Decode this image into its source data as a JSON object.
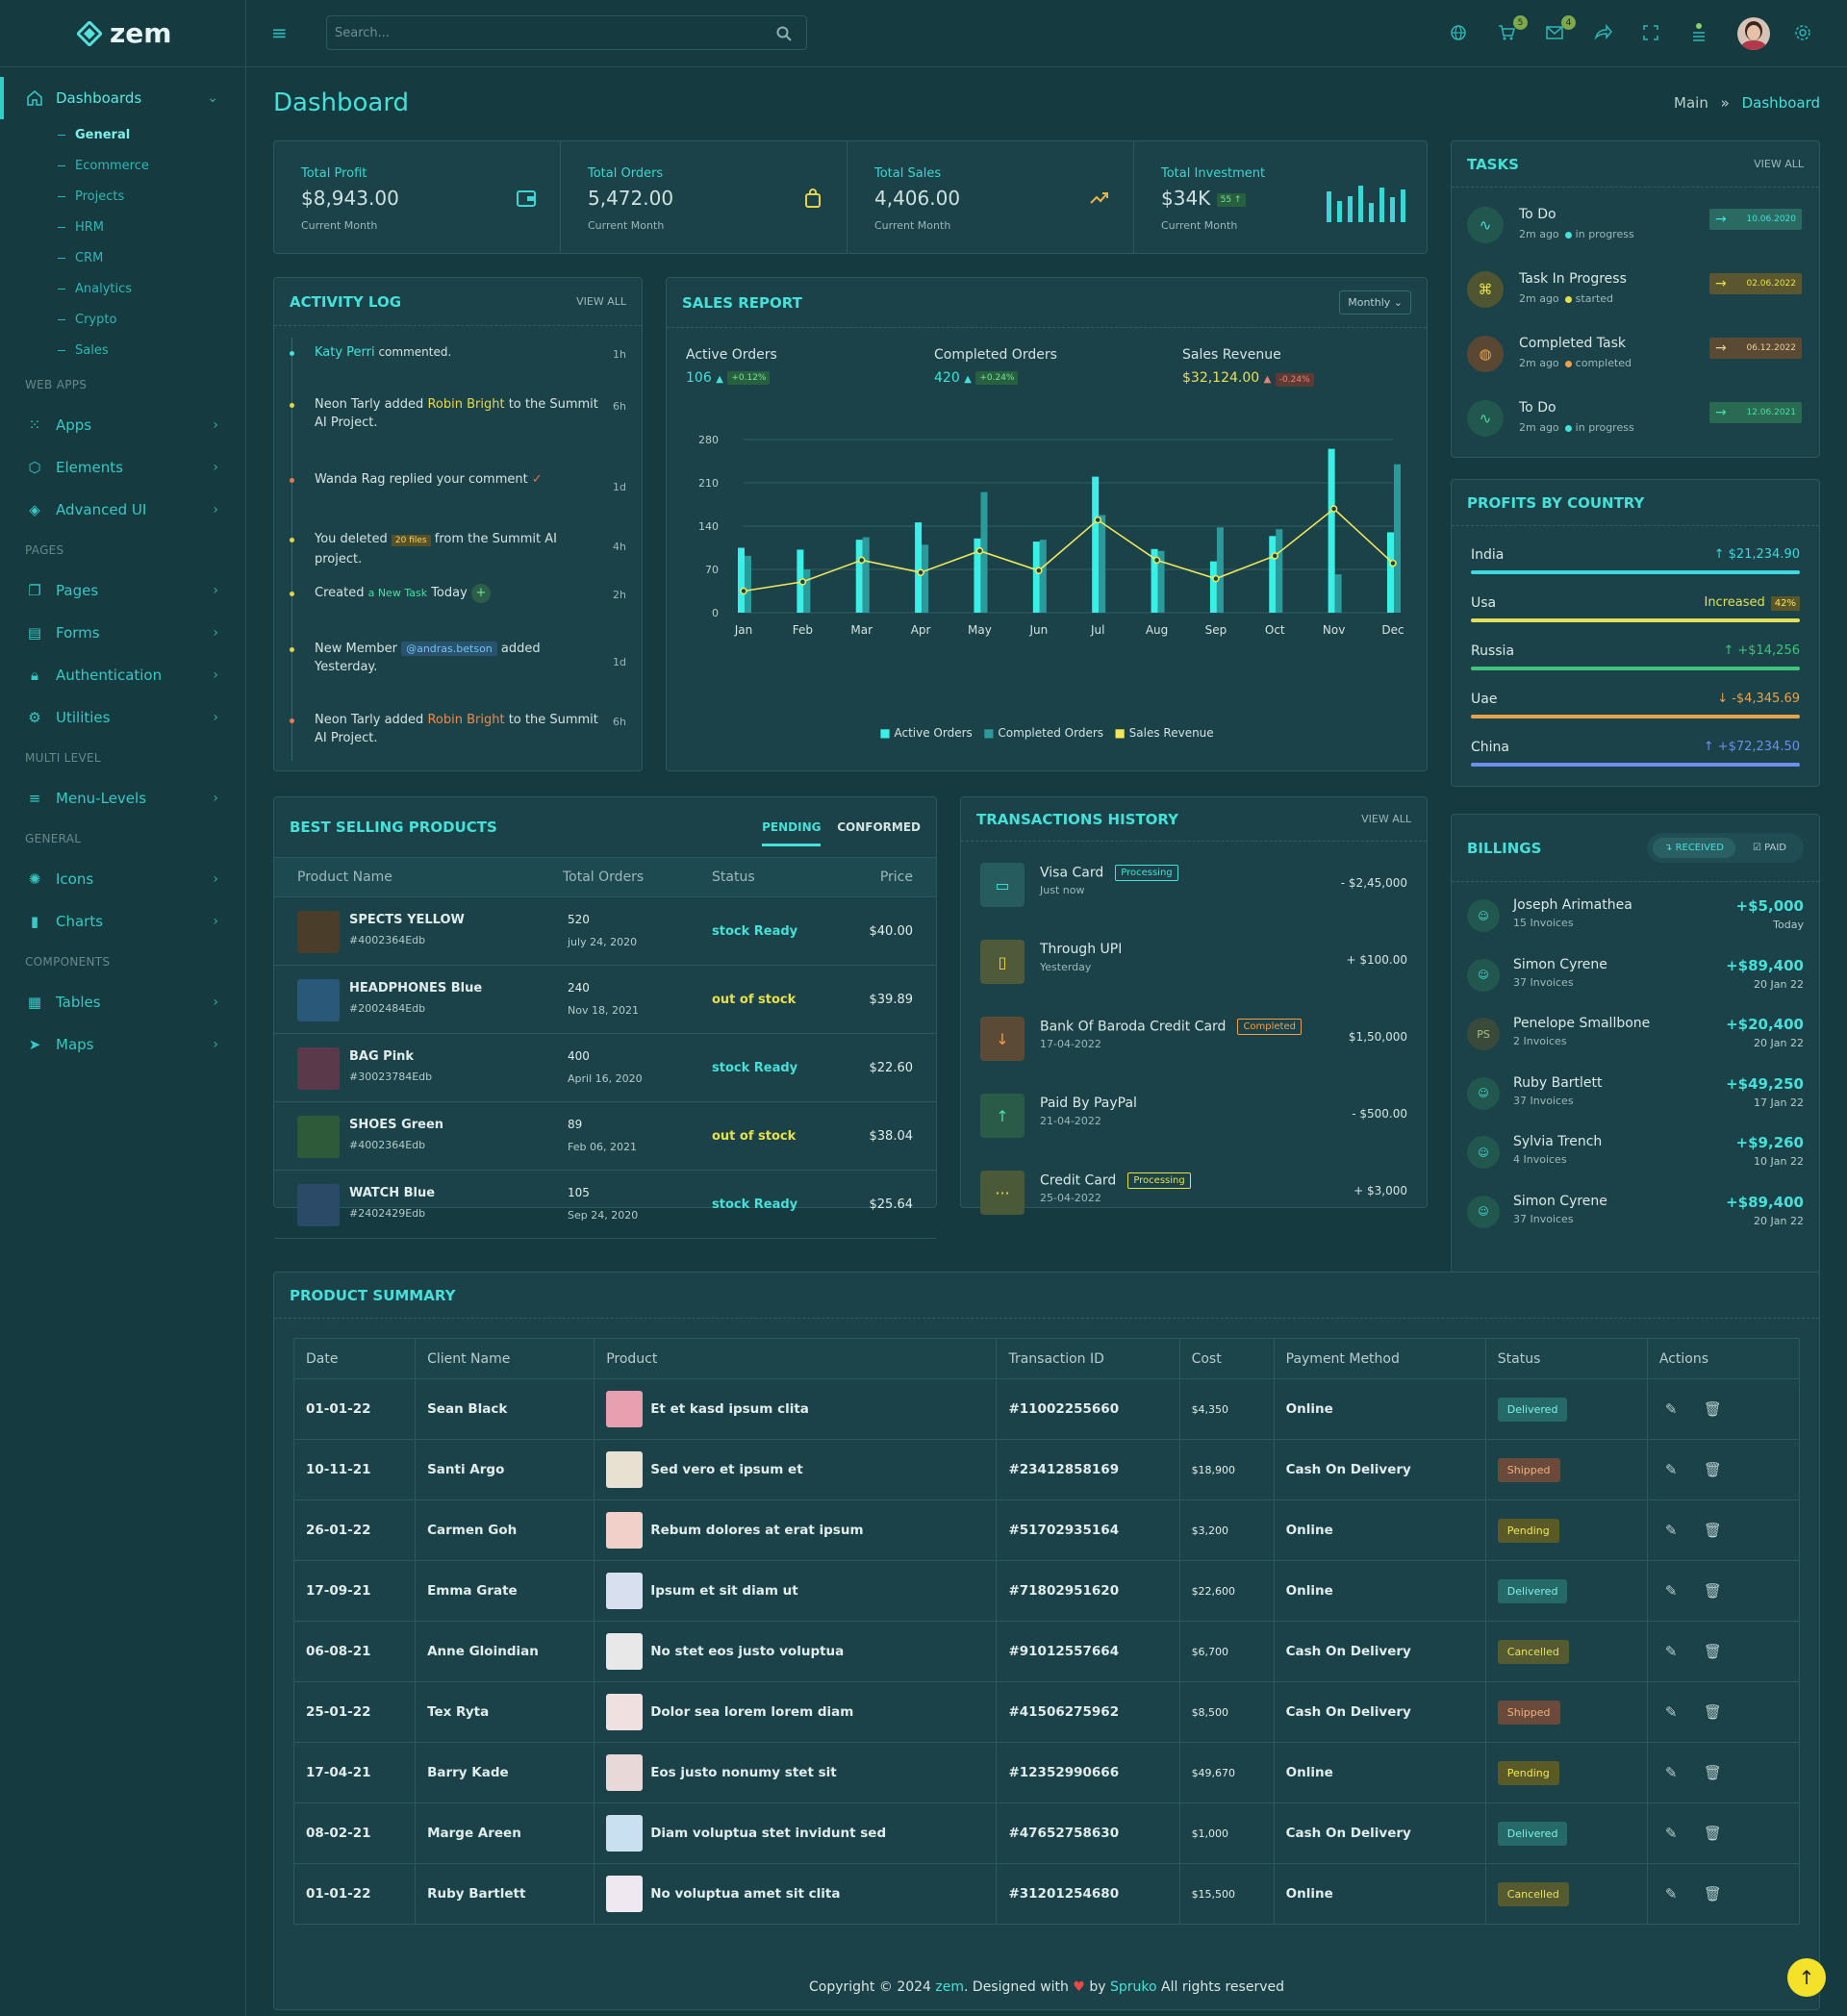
{
  "brand": {
    "name": "zem"
  },
  "search": {
    "placeholder": "Search..."
  },
  "topbar": {
    "cart_count": "5",
    "mail_count": "4"
  },
  "sidebar": {
    "dashboards": "Dashboards",
    "subs": [
      "General",
      "Ecommerce",
      "Projects",
      "HRM",
      "CRM",
      "Analytics",
      "Crypto",
      "Sales"
    ],
    "sections": [
      "WEB APPS",
      "PAGES",
      "MULTI LEVEL",
      "GENERAL",
      "COMPONENTS"
    ],
    "webapps": [
      "Apps",
      "Elements",
      "Advanced UI"
    ],
    "pages": [
      "Pages",
      "Forms",
      "Authentication",
      "Utilities"
    ],
    "multilevel": [
      "Menu-Levels"
    ],
    "general": [
      "Icons",
      "Charts"
    ],
    "components": [
      "Tables",
      "Maps"
    ]
  },
  "page": {
    "title": "Dashboard",
    "crumb_main": "Main",
    "crumb_sep": "»",
    "crumb_current": "Dashboard"
  },
  "stats": [
    {
      "label": "Total Profit",
      "value": "$8,943.00",
      "sub": "Current Month"
    },
    {
      "label": "Total Orders",
      "value": "5,472.00",
      "sub": "Current Month"
    },
    {
      "label": "Total Sales",
      "value": "4,406.00",
      "sub": "Current Month"
    },
    {
      "label": "Total Investment",
      "value": "$34K",
      "badge": "55",
      "sub": "Current Month"
    }
  ],
  "activity": {
    "title": "ACTIVITY LOG",
    "view_all": "VIEW ALL",
    "items": [
      {
        "pre": "",
        "hl": "Katy Perri",
        "post": " commented.",
        "time": "1h"
      },
      {
        "pre": "Neon Tarly added ",
        "hl": "Robin Bright",
        "post": " to the Summit AI Project.",
        "time": "6h"
      },
      {
        "pre": "Wanda Rag replied your comment",
        "hl": "",
        "post": "",
        "time": "1d"
      },
      {
        "pre": "You deleted ",
        "hl": "20 files",
        "post": " from the Summit AI project.",
        "time": "4h"
      },
      {
        "pre": "Created ",
        "hl": "a New Task",
        "post": " Today",
        "time": "2h"
      },
      {
        "pre": "New Member ",
        "hl": "@andras.betson",
        "post": " added Yesterday.",
        "time": "1d"
      },
      {
        "pre": "Neon Tarly added ",
        "hl": "Robin Bright",
        "post": " to the Summit AI Project.",
        "time": "6h"
      }
    ]
  },
  "sales": {
    "title": "SALES REPORT",
    "filter": "Monthly",
    "kpis": [
      {
        "label": "Active Orders",
        "value": "106",
        "change": "+0.12%"
      },
      {
        "label": "Completed Orders",
        "value": "420",
        "change": "+0.24%"
      },
      {
        "label": "Sales Revenue",
        "value": "$32,124.00",
        "change": "-0.24%"
      }
    ]
  },
  "chart_data": {
    "type": "bar",
    "categories": [
      "Jan",
      "Feb",
      "Mar",
      "Apr",
      "May",
      "Jun",
      "Jul",
      "Aug",
      "Sep",
      "Oct",
      "Nov",
      "Dec"
    ],
    "ylim": [
      0,
      280
    ],
    "yticks": [
      0,
      70,
      140,
      210,
      280
    ],
    "series": [
      {
        "name": "Active Orders",
        "type": "bar",
        "values": [
          105,
          102,
          118,
          146,
          120,
          115,
          220,
          103,
          83,
          124,
          265,
          130
        ]
      },
      {
        "name": "Completed Orders",
        "type": "bar",
        "values": [
          92,
          70,
          122,
          110,
          195,
          118,
          158,
          100,
          138,
          135,
          62,
          240
        ]
      },
      {
        "name": "Sales Revenue",
        "type": "line",
        "values": [
          35,
          50,
          85,
          65,
          100,
          68,
          150,
          85,
          55,
          92,
          168,
          80
        ]
      }
    ],
    "grid": true,
    "legend": "bottom"
  },
  "best": {
    "title": "BEST SELLING PRODUCTS",
    "tabs": [
      "PENDING",
      "CONFORMED"
    ],
    "headers": [
      "Product Name",
      "Total Orders",
      "Status",
      "Price"
    ],
    "rows": [
      {
        "name": "SPECTS YELLOW",
        "code": "#4002364Edb",
        "orders": "520",
        "date": "july 24, 2020",
        "status": "stock Ready",
        "price": "$40.00"
      },
      {
        "name": "HEADPHONES Blue",
        "code": "#2002484Edb",
        "orders": "240",
        "date": "Nov 18, 2021",
        "status": "out of stock",
        "price": "$39.89"
      },
      {
        "name": "BAG Pink",
        "code": "#30023784Edb",
        "orders": "400",
        "date": "April 16, 2020",
        "status": "stock Ready",
        "price": "$22.60"
      },
      {
        "name": "SHOES Green",
        "code": "#4002364Edb",
        "orders": "89",
        "date": "Feb 06, 2021",
        "status": "out of stock",
        "price": "$38.04"
      },
      {
        "name": "WATCH Blue",
        "code": "#2402429Edb",
        "orders": "105",
        "date": "Sep 24, 2020",
        "status": "stock Ready",
        "price": "$25.64"
      }
    ]
  },
  "transactions": {
    "title": "TRANSACTIONS HISTORY",
    "view_all": "VIEW ALL",
    "rows": [
      {
        "name": "Visa Card",
        "badge": "Processing",
        "date": "Just now",
        "amount": "- $2,45,000"
      },
      {
        "name": "Through UPI",
        "badge": "",
        "date": "Yesterday",
        "amount": "+ $100.00"
      },
      {
        "name": "Bank Of Baroda Credit Card",
        "badge": "Completed",
        "date": "17-04-2022",
        "amount": "$1,50,000"
      },
      {
        "name": "Paid By PayPal",
        "badge": "",
        "date": "21-04-2022",
        "amount": "- $500.00"
      },
      {
        "name": "Credit Card",
        "badge": "Processing",
        "date": "25-04-2022",
        "amount": "+ $3,000"
      }
    ]
  },
  "tasks": {
    "title": "TASKS",
    "view_all": "VIEW ALL",
    "rows": [
      {
        "name": "To Do",
        "ago": "2m ago",
        "state": "in progress",
        "date": "10.06.2020"
      },
      {
        "name": "Task In Progress",
        "ago": "2m ago",
        "state": "started",
        "date": "02.06.2022"
      },
      {
        "name": "Completed Task",
        "ago": "2m ago",
        "state": "completed",
        "date": "06.12.2022"
      },
      {
        "name": "To Do",
        "ago": "2m ago",
        "state": "in progress",
        "date": "12.06.2021"
      }
    ]
  },
  "profits": {
    "title": "PROFITS BY COUNTRY",
    "rows": [
      {
        "country": "India",
        "value": "$21,234.90",
        "color": "#3dd8e0"
      },
      {
        "country": "Usa",
        "value": "Increased",
        "badge": "42%",
        "color": "#e2e05a"
      },
      {
        "country": "Russia",
        "value": "+$14,256",
        "color": "#3fc27a"
      },
      {
        "country": "Uae",
        "value": "-$4,345.69",
        "color": "#e8a34a"
      },
      {
        "country": "China",
        "value": "+$72,234.50",
        "color": "#6e8ef0"
      }
    ]
  },
  "billings": {
    "title": "BILLINGS",
    "tabs": [
      "RECEIVED",
      "PAID"
    ],
    "rows": [
      {
        "name": "Joseph Arimathea",
        "sub": "15 Invoices",
        "amount": "+$5,000",
        "date": "Today",
        "initials": ""
      },
      {
        "name": "Simon Cyrene",
        "sub": "37 Invoices",
        "amount": "+$89,400",
        "date": "20 Jan 22",
        "initials": ""
      },
      {
        "name": "Penelope Smallbone",
        "sub": "2 Invoices",
        "amount": "+$20,400",
        "date": "20 Jan 22",
        "initials": "PS"
      },
      {
        "name": "Ruby Bartlett",
        "sub": "37 Invoices",
        "amount": "+$49,250",
        "date": "17 Jan 22",
        "initials": ""
      },
      {
        "name": "Sylvia Trench",
        "sub": "4 Invoices",
        "amount": "+$9,260",
        "date": "10 Jan 22",
        "initials": ""
      },
      {
        "name": "Simon Cyrene",
        "sub": "37 Invoices",
        "amount": "+$89,400",
        "date": "20 Jan 22",
        "initials": ""
      }
    ]
  },
  "summary": {
    "title": "PRODUCT SUMMARY",
    "headers": [
      "Date",
      "Client Name",
      "Product",
      "Transaction ID",
      "Cost",
      "Payment Method",
      "Status",
      "Actions"
    ],
    "rows": [
      {
        "date": "01-01-22",
        "client": "Sean Black",
        "product": "Et et kasd ipsum clita",
        "tid": "#11002255660",
        "cost": "$4,350",
        "method": "Online",
        "status": "Delivered"
      },
      {
        "date": "10-11-21",
        "client": "Santi Argo",
        "product": "Sed vero et ipsum et",
        "tid": "#23412858169",
        "cost": "$18,900",
        "method": "Cash On Delivery",
        "status": "Shipped"
      },
      {
        "date": "26-01-22",
        "client": "Carmen Goh",
        "product": "Rebum dolores at erat ipsum",
        "tid": "#51702935164",
        "cost": "$3,200",
        "method": "Online",
        "status": "Pending"
      },
      {
        "date": "17-09-21",
        "client": "Emma Grate",
        "product": "Ipsum et sit diam ut",
        "tid": "#71802951620",
        "cost": "$22,600",
        "method": "Online",
        "status": "Delivered"
      },
      {
        "date": "06-08-21",
        "client": "Anne Gloindian",
        "product": "No stet eos justo voluptua",
        "tid": "#91012557664",
        "cost": "$6,700",
        "method": "Cash On Delivery",
        "status": "Cancelled"
      },
      {
        "date": "25-01-22",
        "client": "Tex Ryta",
        "product": "Dolor sea lorem lorem diam",
        "tid": "#41506275962",
        "cost": "$8,500",
        "method": "Cash On Delivery",
        "status": "Shipped"
      },
      {
        "date": "17-04-21",
        "client": "Barry Kade",
        "product": "Eos justo nonumy stet sit",
        "tid": "#12352990666",
        "cost": "$49,670",
        "method": "Online",
        "status": "Pending"
      },
      {
        "date": "08-02-21",
        "client": "Marge Areen",
        "product": "Diam voluptua stet invidunt sed",
        "tid": "#47652758630",
        "cost": "$1,000",
        "method": "Cash On Delivery",
        "status": "Delivered"
      },
      {
        "date": "01-01-22",
        "client": "Ruby Bartlett",
        "product": "No voluptua amet sit clita",
        "tid": "#31201254680",
        "cost": "$15,500",
        "method": "Online",
        "status": "Cancelled"
      }
    ]
  },
  "footer": {
    "pre": "Copyright © 2024 ",
    "brand": "zem",
    "mid": ". Designed with ",
    "by": " by ",
    "company": "Spruko",
    "post": " All rights reserved"
  }
}
